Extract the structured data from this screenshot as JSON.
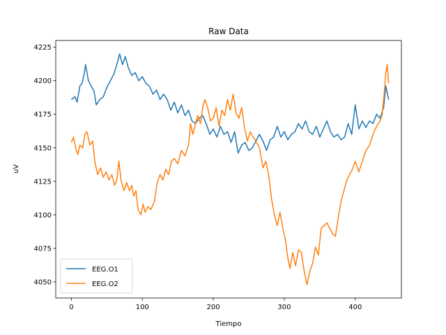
{
  "chart_data": {
    "type": "line",
    "title": "Raw Data",
    "xlabel": "Tiempo",
    "ylabel": "uV",
    "xlim": [
      -22,
      465
    ],
    "ylim": [
      4038,
      4230
    ],
    "xticks": [
      0,
      100,
      200,
      300,
      400
    ],
    "yticks": [
      4050,
      4075,
      4100,
      4125,
      4150,
      4175,
      4200,
      4225
    ],
    "grid": false,
    "legend_position": "lower-left",
    "series": [
      {
        "name": "EEG.O1",
        "color": "#1f77b4",
        "points": [
          [
            0,
            4186
          ],
          [
            5,
            4188
          ],
          [
            8,
            4184
          ],
          [
            12,
            4196
          ],
          [
            15,
            4198
          ],
          [
            18,
            4205
          ],
          [
            20,
            4212
          ],
          [
            24,
            4200
          ],
          [
            28,
            4196
          ],
          [
            32,
            4192
          ],
          [
            35,
            4182
          ],
          [
            40,
            4186
          ],
          [
            45,
            4188
          ],
          [
            50,
            4195
          ],
          [
            55,
            4200
          ],
          [
            60,
            4205
          ],
          [
            64,
            4212
          ],
          [
            68,
            4220
          ],
          [
            72,
            4212
          ],
          [
            76,
            4218
          ],
          [
            80,
            4210
          ],
          [
            85,
            4204
          ],
          [
            90,
            4206
          ],
          [
            95,
            4200
          ],
          [
            100,
            4203
          ],
          [
            105,
            4198
          ],
          [
            110,
            4196
          ],
          [
            115,
            4190
          ],
          [
            120,
            4193
          ],
          [
            125,
            4186
          ],
          [
            130,
            4190
          ],
          [
            135,
            4186
          ],
          [
            140,
            4178
          ],
          [
            145,
            4184
          ],
          [
            150,
            4176
          ],
          [
            155,
            4182
          ],
          [
            160,
            4174
          ],
          [
            165,
            4178
          ],
          [
            170,
            4170
          ],
          [
            175,
            4168
          ],
          [
            180,
            4172
          ],
          [
            185,
            4174
          ],
          [
            190,
            4168
          ],
          [
            195,
            4160
          ],
          [
            200,
            4164
          ],
          [
            205,
            4158
          ],
          [
            210,
            4166
          ],
          [
            215,
            4160
          ],
          [
            220,
            4162
          ],
          [
            225,
            4154
          ],
          [
            230,
            4162
          ],
          [
            235,
            4146
          ],
          [
            240,
            4152
          ],
          [
            245,
            4154
          ],
          [
            250,
            4148
          ],
          [
            255,
            4150
          ],
          [
            260,
            4155
          ],
          [
            265,
            4160
          ],
          [
            270,
            4155
          ],
          [
            275,
            4148
          ],
          [
            280,
            4156
          ],
          [
            285,
            4158
          ],
          [
            290,
            4166
          ],
          [
            295,
            4158
          ],
          [
            300,
            4162
          ],
          [
            305,
            4156
          ],
          [
            310,
            4160
          ],
          [
            315,
            4162
          ],
          [
            320,
            4168
          ],
          [
            325,
            4164
          ],
          [
            330,
            4170
          ],
          [
            335,
            4162
          ],
          [
            340,
            4160
          ],
          [
            345,
            4166
          ],
          [
            350,
            4158
          ],
          [
            355,
            4164
          ],
          [
            360,
            4170
          ],
          [
            365,
            4162
          ],
          [
            370,
            4158
          ],
          [
            375,
            4160
          ],
          [
            380,
            4156
          ],
          [
            385,
            4158
          ],
          [
            390,
            4168
          ],
          [
            395,
            4160
          ],
          [
            400,
            4182
          ],
          [
            405,
            4164
          ],
          [
            410,
            4170
          ],
          [
            415,
            4165
          ],
          [
            420,
            4170
          ],
          [
            425,
            4168
          ],
          [
            430,
            4175
          ],
          [
            435,
            4172
          ],
          [
            440,
            4180
          ],
          [
            443,
            4196
          ],
          [
            447,
            4186
          ]
        ]
      },
      {
        "name": "EEG.O2",
        "color": "#ff7f0e",
        "points": [
          [
            0,
            4154
          ],
          [
            3,
            4158
          ],
          [
            6,
            4150
          ],
          [
            9,
            4145
          ],
          [
            12,
            4152
          ],
          [
            16,
            4150
          ],
          [
            19,
            4160
          ],
          [
            22,
            4162
          ],
          [
            26,
            4152
          ],
          [
            30,
            4155
          ],
          [
            33,
            4140
          ],
          [
            37,
            4130
          ],
          [
            41,
            4135
          ],
          [
            45,
            4128
          ],
          [
            49,
            4132
          ],
          [
            53,
            4126
          ],
          [
            57,
            4130
          ],
          [
            61,
            4122
          ],
          [
            64,
            4126
          ],
          [
            67,
            4140
          ],
          [
            70,
            4126
          ],
          [
            74,
            4118
          ],
          [
            78,
            4124
          ],
          [
            82,
            4118
          ],
          [
            85,
            4122
          ],
          [
            88,
            4114
          ],
          [
            91,
            4118
          ],
          [
            94,
            4104
          ],
          [
            98,
            4100
          ],
          [
            101,
            4108
          ],
          [
            104,
            4102
          ],
          [
            108,
            4106
          ],
          [
            112,
            4104
          ],
          [
            117,
            4110
          ],
          [
            121,
            4124
          ],
          [
            125,
            4130
          ],
          [
            129,
            4126
          ],
          [
            133,
            4134
          ],
          [
            137,
            4130
          ],
          [
            141,
            4140
          ],
          [
            145,
            4142
          ],
          [
            150,
            4138
          ],
          [
            155,
            4148
          ],
          [
            160,
            4144
          ],
          [
            165,
            4152
          ],
          [
            168,
            4168
          ],
          [
            171,
            4160
          ],
          [
            174,
            4166
          ],
          [
            178,
            4174
          ],
          [
            182,
            4168
          ],
          [
            185,
            4180
          ],
          [
            188,
            4186
          ],
          [
            192,
            4180
          ],
          [
            196,
            4170
          ],
          [
            200,
            4172
          ],
          [
            204,
            4180
          ],
          [
            208,
            4166
          ],
          [
            212,
            4178
          ],
          [
            216,
            4174
          ],
          [
            220,
            4186
          ],
          [
            224,
            4178
          ],
          [
            228,
            4190
          ],
          [
            232,
            4176
          ],
          [
            236,
            4172
          ],
          [
            240,
            4180
          ],
          [
            244,
            4165
          ],
          [
            248,
            4155
          ],
          [
            252,
            4162
          ],
          [
            256,
            4158
          ],
          [
            260,
            4155
          ],
          [
            265,
            4150
          ],
          [
            270,
            4135
          ],
          [
            274,
            4140
          ],
          [
            278,
            4130
          ],
          [
            282,
            4112
          ],
          [
            286,
            4100
          ],
          [
            290,
            4092
          ],
          [
            294,
            4102
          ],
          [
            298,
            4090
          ],
          [
            302,
            4080
          ],
          [
            305,
            4068
          ],
          [
            308,
            4060
          ],
          [
            312,
            4072
          ],
          [
            316,
            4062
          ],
          [
            320,
            4074
          ],
          [
            324,
            4072
          ],
          [
            328,
            4058
          ],
          [
            332,
            4048
          ],
          [
            336,
            4058
          ],
          [
            340,
            4064
          ],
          [
            344,
            4076
          ],
          [
            348,
            4070
          ],
          [
            352,
            4090
          ],
          [
            356,
            4092
          ],
          [
            360,
            4094
          ],
          [
            364,
            4090
          ],
          [
            368,
            4086
          ],
          [
            372,
            4084
          ],
          [
            376,
            4098
          ],
          [
            380,
            4110
          ],
          [
            384,
            4118
          ],
          [
            388,
            4126
          ],
          [
            392,
            4130
          ],
          [
            396,
            4134
          ],
          [
            400,
            4140
          ],
          [
            405,
            4132
          ],
          [
            410,
            4140
          ],
          [
            415,
            4148
          ],
          [
            420,
            4152
          ],
          [
            425,
            4160
          ],
          [
            430,
            4166
          ],
          [
            435,
            4170
          ],
          [
            438,
            4175
          ],
          [
            441,
            4192
          ],
          [
            443,
            4206
          ],
          [
            445,
            4212
          ],
          [
            447,
            4198
          ]
        ]
      }
    ]
  }
}
